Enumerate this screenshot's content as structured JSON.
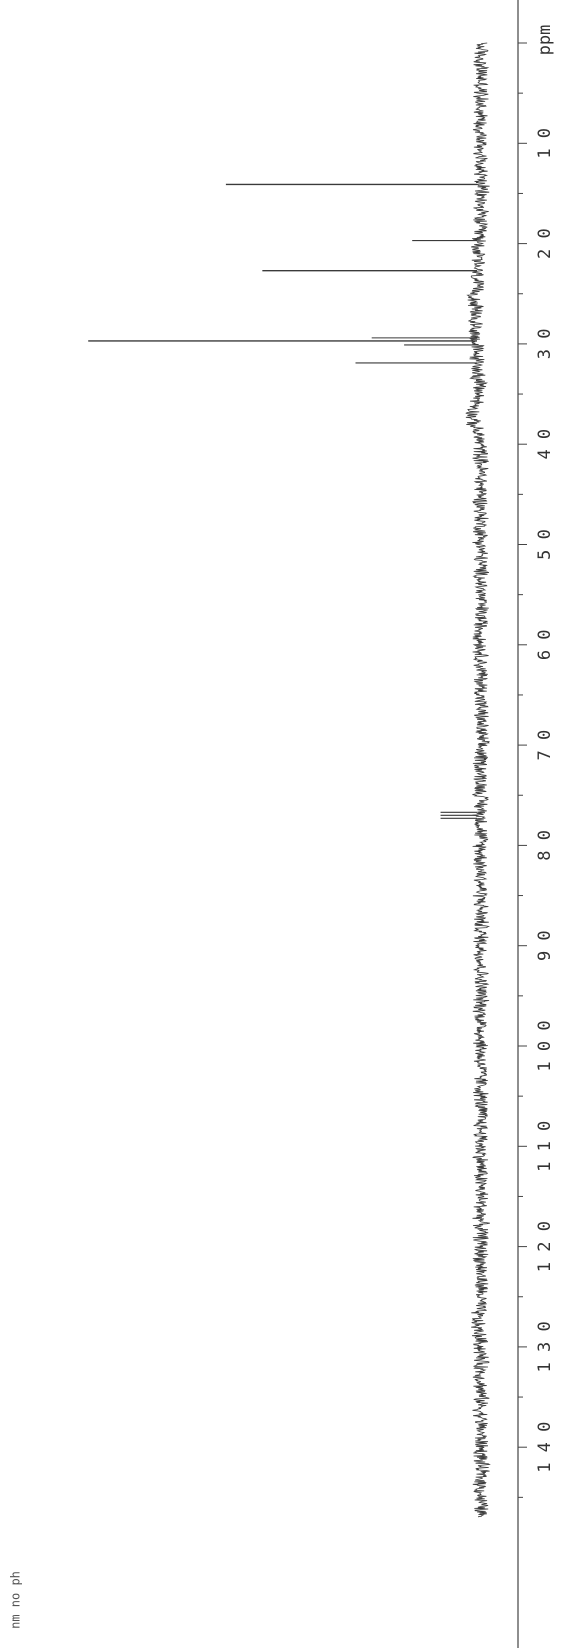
{
  "chart_data": {
    "type": "line",
    "title": "",
    "xlabel": "ppm",
    "ylabel": "",
    "x_range": [
      0,
      147
    ],
    "x_reversed": true,
    "ticks": [
      {
        "value": 10,
        "label": "1 0"
      },
      {
        "value": 20,
        "label": "2 0"
      },
      {
        "value": 30,
        "label": "3 0"
      },
      {
        "value": 40,
        "label": "4 0"
      },
      {
        "value": 50,
        "label": "5 0"
      },
      {
        "value": 60,
        "label": "6 0"
      },
      {
        "value": 70,
        "label": "7 0"
      },
      {
        "value": 80,
        "label": "8 0"
      },
      {
        "value": 90,
        "label": "9 0"
      },
      {
        "value": 100,
        "label": "1 0 0"
      },
      {
        "value": 110,
        "label": "1 1 0"
      },
      {
        "value": 120,
        "label": "1 2 0"
      },
      {
        "value": 130,
        "label": "1 3 0"
      },
      {
        "value": 140,
        "label": "1 4 0"
      }
    ],
    "peaks": [
      {
        "ppm": 14.1,
        "intensity": 0.62
      },
      {
        "ppm": 19.7,
        "intensity": 0.16
      },
      {
        "ppm": 22.7,
        "intensity": 0.53
      },
      {
        "ppm": 29.4,
        "intensity": 0.26
      },
      {
        "ppm": 29.7,
        "intensity": 0.96
      },
      {
        "ppm": 30.1,
        "intensity": 0.18
      },
      {
        "ppm": 31.9,
        "intensity": 0.3
      },
      {
        "ppm": 76.7,
        "intensity": 0.09
      },
      {
        "ppm": 77.0,
        "intensity": 0.09
      },
      {
        "ppm": 77.3,
        "intensity": 0.09
      }
    ],
    "annotation": "nm no ph",
    "grid": false
  },
  "colors": {
    "trace": "#3a3a3a",
    "axis": "#444444",
    "background": "#ffffff"
  }
}
